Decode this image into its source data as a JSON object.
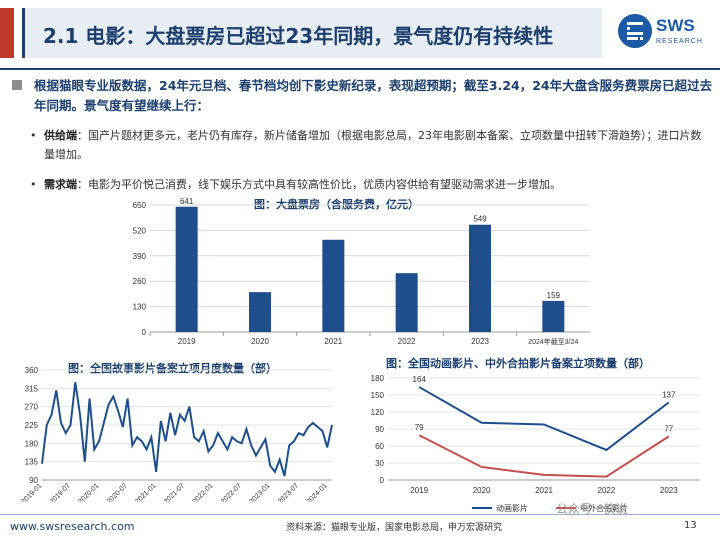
{
  "slide": {
    "title": "2.1 电影：大盘票房已超过23年同期，景气度仍有持续性",
    "logo_main": "SWS",
    "logo_sub": "RESEARCH",
    "main_point": "根据猫眼专业版数据，24年元旦档、春节档均创下影史新纪录，表现超预期；截至3.24，24年大盘含服务费票房已超过去年同期。景气度有望继续上行：",
    "supply_tag": "供给端",
    "supply_text": "：国产片题材更多元，老片仍有库存，新片储备增加（根据电影总局，23年电影剧本备案、立项数量中扭转下滑趋势）；进口片数量增加。",
    "demand_tag": "需求端",
    "demand_text": "：电影为平价悦己消费，线下娱乐方式中具有较高性价比，优质内容供给有望驱动需求进一步增加。",
    "bullet_char": "•",
    "footer_url": "www.swsresearch.com",
    "footer_source": "资料来源：猫眼专业版，国家电影总局，申万宏源研究",
    "page_number": "13",
    "watermark": "公众号 · 侠说"
  },
  "colors": {
    "navy": "#1c3f6e",
    "bar": "#1f4e8c",
    "red_line": "#c0504d",
    "accent_red": "#c0392b"
  },
  "chart_data": [
    {
      "type": "bar",
      "title": "图：大盘票房（含服务费，亿元）",
      "categories": [
        "2019",
        "2020",
        "2021",
        "2022",
        "2023",
        "2024年截至3/24"
      ],
      "values": [
        641,
        204,
        472,
        301,
        549,
        159
      ],
      "data_labels": [
        "641",
        "",
        "",
        "",
        "549",
        "159"
      ],
      "ylim": [
        0,
        650
      ],
      "yticks": [
        0,
        130,
        260,
        390,
        520,
        650
      ],
      "grid": true
    },
    {
      "type": "line",
      "title": "图：全国故事影片备案立项月度数量（部）",
      "ylim": [
        90,
        360
      ],
      "yticks": [
        90,
        135,
        180,
        225,
        270,
        315,
        360
      ],
      "xtick_labels": [
        "2019-01",
        "2019-07",
        "2020-01",
        "2020-07",
        "2021-01",
        "2021-07",
        "2022-01",
        "2022-07",
        "2023-01",
        "2023-07",
        "2024-01"
      ],
      "x": [
        "2019-01",
        "2019-02",
        "2019-03",
        "2019-04",
        "2019-05",
        "2019-06",
        "2019-07",
        "2019-08",
        "2019-09",
        "2019-10",
        "2019-11",
        "2019-12",
        "2020-01",
        "2020-02",
        "2020-03",
        "2020-04",
        "2020-05",
        "2020-06",
        "2020-07",
        "2020-08",
        "2020-09",
        "2020-10",
        "2020-11",
        "2020-12",
        "2021-01",
        "2021-02",
        "2021-03",
        "2021-04",
        "2021-05",
        "2021-06",
        "2021-07",
        "2021-08",
        "2021-09",
        "2021-10",
        "2021-11",
        "2021-12",
        "2022-01",
        "2022-02",
        "2022-03",
        "2022-04",
        "2022-05",
        "2022-06",
        "2022-07",
        "2022-08",
        "2022-09",
        "2022-10",
        "2022-11",
        "2022-12",
        "2023-01",
        "2023-02",
        "2023-03",
        "2023-04",
        "2023-05",
        "2023-06",
        "2023-07",
        "2023-08",
        "2023-09",
        "2023-10",
        "2023-11",
        "2023-12",
        "2024-01",
        "2024-02"
      ],
      "series": [
        {
          "values": [
            130,
            225,
            250,
            310,
            230,
            205,
            225,
            330,
            250,
            135,
            290,
            165,
            185,
            230,
            275,
            295,
            260,
            220,
            290,
            175,
            195,
            185,
            165,
            195,
            110,
            235,
            185,
            255,
            200,
            250,
            235,
            270,
            195,
            185,
            210,
            160,
            175,
            205,
            185,
            165,
            195,
            185,
            180,
            215,
            175,
            150,
            170,
            190,
            125,
            110,
            140,
            100,
            175,
            185,
            205,
            200,
            220,
            230,
            220,
            210,
            170,
            225
          ]
        }
      ]
    },
    {
      "type": "line",
      "title": "图：全国动画影片、中外合拍影片备案立项数量（部）",
      "categories": [
        "2019",
        "2020",
        "2021",
        "2022",
        "2023"
      ],
      "ylim": [
        0,
        180
      ],
      "yticks": [
        0,
        30,
        60,
        90,
        120,
        150,
        180
      ],
      "series": [
        {
          "name": "动画影片",
          "values": [
            164,
            101,
            98,
            53,
            137
          ],
          "labels": [
            "164",
            "",
            "",
            "",
            "137"
          ]
        },
        {
          "name": "中外合拍影片",
          "values": [
            79,
            23,
            9,
            6,
            77
          ],
          "labels": [
            "79",
            "",
            "",
            "",
            "77"
          ]
        }
      ],
      "legend": "bottom"
    }
  ]
}
